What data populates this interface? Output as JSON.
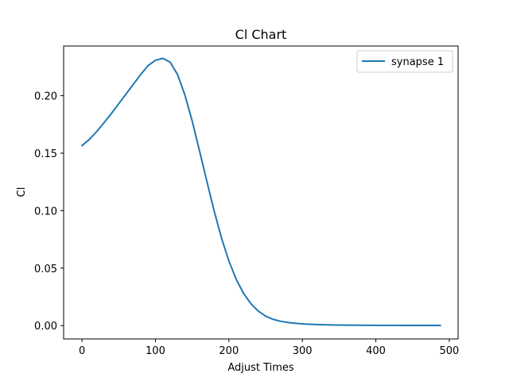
{
  "chart_data": {
    "type": "line",
    "title": "Cl Chart",
    "xlabel": "Adjust Times",
    "ylabel": "Cl",
    "xlim": [
      -25,
      512
    ],
    "ylim": [
      -0.0116,
      0.2432
    ],
    "xticks": [
      0,
      100,
      200,
      300,
      400,
      500
    ],
    "xtick_labels": [
      "0",
      "100",
      "200",
      "300",
      "400",
      "500"
    ],
    "yticks": [
      0.0,
      0.05,
      0.1,
      0.15,
      0.2
    ],
    "ytick_labels": [
      "0.00",
      "0.05",
      "0.10",
      "0.15",
      "0.20"
    ],
    "grid": false,
    "legend": {
      "position": "top-right",
      "entries": [
        "synapse 1"
      ]
    },
    "series": [
      {
        "name": "synapse 1",
        "color": "#1f77b4",
        "x": [
          0,
          10,
          20,
          30,
          40,
          50,
          60,
          70,
          80,
          90,
          100,
          110,
          120,
          130,
          140,
          150,
          160,
          170,
          180,
          190,
          200,
          210,
          220,
          230,
          240,
          250,
          260,
          270,
          280,
          290,
          300,
          320,
          340,
          360,
          380,
          400,
          420,
          440,
          460,
          488
        ],
        "y": [
          0.1565,
          0.162,
          0.1688,
          0.1765,
          0.1845,
          0.193,
          0.2015,
          0.21,
          0.2185,
          0.2262,
          0.2308,
          0.2325,
          0.2292,
          0.2185,
          0.2008,
          0.178,
          0.152,
          0.1255,
          0.0995,
          0.076,
          0.0562,
          0.0402,
          0.028,
          0.019,
          0.0126,
          0.0082,
          0.0055,
          0.0038,
          0.0027,
          0.002,
          0.0015,
          0.0009,
          0.0006,
          0.0004,
          0.0003,
          0.0002,
          0.0002,
          0.0001,
          0.0001,
          0.0001
        ]
      }
    ]
  }
}
